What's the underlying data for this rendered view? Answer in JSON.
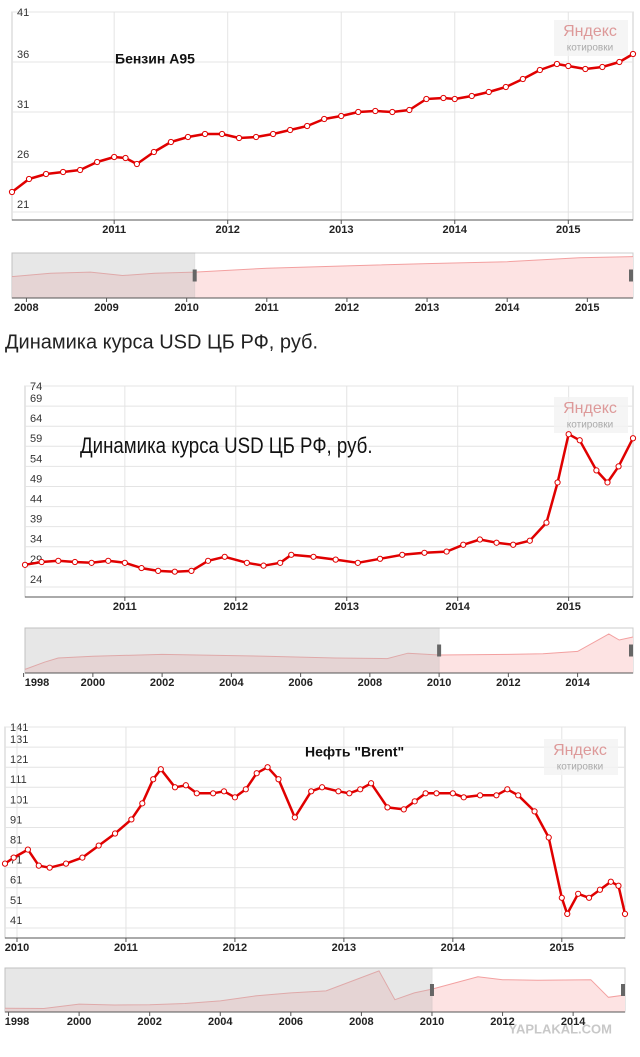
{
  "heading": "Динамика курса USD ЦБ РФ, руб.",
  "watermark": "YAPLAKAL.COM",
  "chart_data": [
    {
      "type": "line",
      "title": "Бензин А95",
      "brand": "Яндекс",
      "brand_sub": "котировки",
      "color": "#e00000",
      "grid": true,
      "xlim": [
        2010.1,
        2015.57
      ],
      "xticks": [
        2011,
        2012,
        2013,
        2014,
        2015
      ],
      "ylim": [
        20.2,
        41
      ],
      "yticks": [
        21,
        26,
        31,
        36,
        41
      ],
      "x": [
        2010.1,
        2010.25,
        2010.4,
        2010.55,
        2010.7,
        2010.85,
        2011.0,
        2011.1,
        2011.2,
        2011.35,
        2011.5,
        2011.65,
        2011.8,
        2011.95,
        2012.1,
        2012.25,
        2012.4,
        2012.55,
        2012.7,
        2012.85,
        2013.0,
        2013.15,
        2013.3,
        2013.45,
        2013.6,
        2013.75,
        2013.9,
        2014.0,
        2014.15,
        2014.3,
        2014.45,
        2014.6,
        2014.75,
        2014.9,
        2015.0,
        2015.15,
        2015.3,
        2015.45,
        2015.57
      ],
      "values": [
        23.0,
        24.3,
        24.8,
        25.0,
        25.2,
        26.0,
        26.5,
        26.4,
        25.8,
        27.0,
        28.0,
        28.5,
        28.8,
        28.8,
        28.4,
        28.5,
        28.8,
        29.2,
        29.6,
        30.3,
        30.6,
        31.0,
        31.1,
        31.0,
        31.2,
        32.3,
        32.4,
        32.3,
        32.6,
        33.0,
        33.5,
        34.3,
        35.2,
        35.8,
        35.6,
        35.3,
        35.5,
        36.0,
        36.8
      ],
      "navigator": {
        "xlim": [
          2007.82,
          2015.57
        ],
        "ylim": [
          0,
          40
        ],
        "xticks": [
          2008,
          2009,
          2010,
          2011,
          2012,
          2013,
          2014,
          2015
        ],
        "window": [
          2010.1,
          2015.57
        ],
        "x": [
          2007.82,
          2008.3,
          2008.8,
          2009.2,
          2009.6,
          2010.1,
          2011,
          2012,
          2013,
          2014,
          2014.9,
          2015.57
        ],
        "values": [
          19,
          22,
          23,
          20,
          22,
          23,
          26.5,
          28.5,
          30.6,
          32.3,
          35.8,
          36.8
        ]
      }
    },
    {
      "type": "line",
      "title": "Динамика курса USD ЦБ РФ, руб.",
      "brand": "Яндекс",
      "brand_sub": "котировки",
      "color": "#e00000",
      "grid": true,
      "xlim": [
        2010.1,
        2015.58
      ],
      "xticks": [
        2011,
        2012,
        2013,
        2014,
        2015
      ],
      "ylim": [
        21.5,
        74
      ],
      "yticks": [
        24,
        29,
        34,
        39,
        44,
        49,
        54,
        59,
        64,
        69,
        74
      ],
      "x": [
        2010.1,
        2010.25,
        2010.4,
        2010.55,
        2010.7,
        2010.85,
        2011.0,
        2011.15,
        2011.3,
        2011.45,
        2011.6,
        2011.75,
        2011.9,
        2012.1,
        2012.25,
        2012.4,
        2012.5,
        2012.7,
        2012.9,
        2013.1,
        2013.3,
        2013.5,
        2013.7,
        2013.9,
        2014.05,
        2014.2,
        2014.35,
        2014.5,
        2014.65,
        2014.8,
        2014.9,
        2015.0,
        2015.1,
        2015.25,
        2015.35,
        2015.45,
        2015.58
      ],
      "values": [
        29.5,
        30.2,
        30.5,
        30.2,
        30.0,
        30.5,
        30.0,
        28.7,
        28.0,
        27.8,
        28.0,
        30.5,
        31.5,
        30.0,
        29.3,
        30.0,
        32.0,
        31.5,
        30.8,
        30.0,
        31.0,
        32.0,
        32.5,
        32.8,
        34.5,
        35.8,
        35.0,
        34.5,
        35.5,
        40.0,
        50.0,
        62.0,
        60.5,
        53.0,
        50.0,
        54.0,
        61.0
      ],
      "navigator": {
        "xlim": [
          1998.04,
          2015.6
        ],
        "ylim": [
          0,
          75
        ],
        "xticks": [
          1998,
          2000,
          2002,
          2004,
          2006,
          2008,
          2010,
          2012,
          2014
        ],
        "window": [
          2010,
          2015.6
        ],
        "x": [
          1998.04,
          1998.6,
          1999,
          2000,
          2002,
          2003,
          2005,
          2007,
          2008.5,
          2009.1,
          2010,
          2012,
          2013,
          2014,
          2014.9,
          2015.2,
          2015.6
        ],
        "values": [
          6,
          18,
          25,
          28,
          31,
          30,
          28,
          25,
          24,
          33,
          30,
          31,
          32,
          36,
          65,
          55,
          60
        ]
      }
    },
    {
      "type": "line",
      "title": "Нефть \"Brent\"",
      "brand": "Яндекс",
      "brand_sub": "котировки",
      "color": "#e00000",
      "grid": true,
      "xlim": [
        2009.89,
        2015.58
      ],
      "xticks": [
        2010,
        2011,
        2012,
        2013,
        2014,
        2015
      ],
      "ylim": [
        36,
        141
      ],
      "yticks": [
        41,
        51,
        61,
        71,
        81,
        91,
        101,
        111,
        121,
        131,
        141
      ],
      "x": [
        2009.89,
        2009.97,
        2010.1,
        2010.2,
        2010.3,
        2010.45,
        2010.6,
        2010.75,
        2010.9,
        2011.05,
        2011.15,
        2011.25,
        2011.32,
        2011.45,
        2011.55,
        2011.65,
        2011.8,
        2011.9,
        2012.0,
        2012.1,
        2012.2,
        2012.3,
        2012.4,
        2012.55,
        2012.7,
        2012.8,
        2012.95,
        2013.05,
        2013.15,
        2013.25,
        2013.4,
        2013.55,
        2013.65,
        2013.75,
        2013.85,
        2014.0,
        2014.1,
        2014.25,
        2014.4,
        2014.5,
        2014.6,
        2014.75,
        2014.88,
        2015.0,
        2015.05,
        2015.15,
        2015.25,
        2015.35,
        2015.45,
        2015.52,
        2015.58
      ],
      "values": [
        73,
        76,
        80,
        72,
        71,
        73,
        76,
        82,
        88,
        95,
        103,
        115,
        120,
        111,
        112,
        108,
        108,
        109,
        106,
        110,
        118,
        121,
        115,
        96,
        109,
        111,
        109,
        108,
        110,
        113,
        101,
        100,
        104,
        108,
        108,
        108,
        106,
        107,
        107,
        110,
        107,
        99,
        86,
        56,
        48,
        58,
        56,
        60,
        64,
        62,
        48
      ],
      "navigator": {
        "xlim": [
          1997.9,
          2015.47
        ],
        "ylim": [
          0,
          150
        ],
        "xticks": [
          1998,
          2000,
          2002,
          2004,
          2006,
          2008,
          2010,
          2012,
          2014
        ],
        "window": [
          2010,
          2015.47
        ],
        "x": [
          1997.9,
          1999,
          2000,
          2001,
          2002,
          2003,
          2004,
          2005,
          2006,
          2007,
          2008.5,
          2008.95,
          2009.5,
          2010,
          2011.3,
          2012,
          2013,
          2014.5,
          2015,
          2015.47
        ],
        "values": [
          13,
          12,
          27,
          24,
          25,
          29,
          38,
          55,
          65,
          72,
          140,
          42,
          65,
          78,
          120,
          110,
          108,
          110,
          50,
          58
        ]
      }
    }
  ]
}
